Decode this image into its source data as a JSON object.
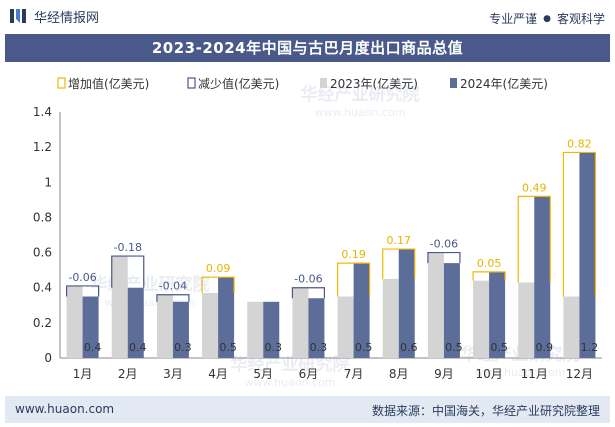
{
  "header": {
    "brand_name": "华经情报网",
    "slogan_left": "专业严谨",
    "slogan_right": "客观科学"
  },
  "title": "2023-2024年中国与古巴月度出口商品总值",
  "footer": {
    "url": "www.huaon.com",
    "source": "数据来源：中国海关，华经产业研究院整理"
  },
  "watermark": {
    "text_cn": "华经产业研究院",
    "text_url": "www.huaon.com"
  },
  "colors": {
    "increase": "#f0b800",
    "decrease": "#48598a",
    "y2023": "#d4d4d4",
    "y2024": "#5b6d98",
    "increase_label": "#e8b300",
    "decrease_label": "#48598a",
    "title_bg": "#48598a"
  },
  "chart_data": {
    "type": "bar",
    "title": "2023-2024年中国与古巴月度出口商品总值",
    "categories": [
      "1月",
      "2月",
      "3月",
      "4月",
      "5月",
      "6月",
      "7月",
      "8月",
      "9月",
      "10月",
      "11月",
      "12月"
    ],
    "series": [
      {
        "name": "2023年(亿美元)",
        "values": [
          0.41,
          0.58,
          0.36,
          0.37,
          0.32,
          0.4,
          0.35,
          0.45,
          0.6,
          0.44,
          0.43,
          0.35
        ]
      },
      {
        "name": "2024年(亿美元)",
        "values": [
          0.35,
          0.4,
          0.32,
          0.46,
          0.32,
          0.34,
          0.54,
          0.62,
          0.54,
          0.49,
          0.92,
          1.17
        ]
      }
    ],
    "change_legend": {
      "increase": "增加值(亿美元)",
      "decrease": "减少值(亿美元)"
    },
    "change_labels": [
      "-0.06",
      "-0.18",
      "-0.04",
      "0.09",
      "",
      "-0.06",
      "0.19",
      "0.17",
      "-0.06",
      "0.05",
      "0.49",
      "0.82"
    ],
    "value_labels": [
      "0.4",
      "0.4",
      "0.3",
      "0.5",
      "0.3",
      "0.3",
      "0.5",
      "0.6",
      "0.5",
      "0.5",
      "0.9",
      "1.2"
    ],
    "ylim": [
      0,
      1.4
    ],
    "yticks": [
      "0",
      "0.2",
      "0.4",
      "0.6",
      "0.8",
      "1",
      "1.2",
      "1.4"
    ],
    "legend_position": "top"
  }
}
